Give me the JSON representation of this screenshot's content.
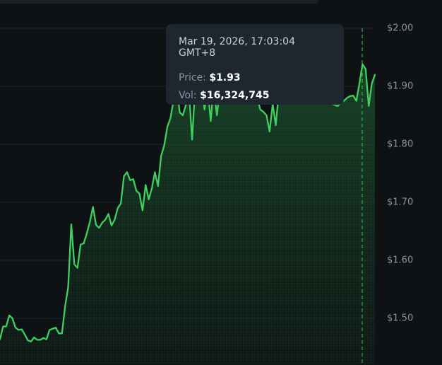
{
  "tooltip": {
    "date": "Mar 19, 2026, 17:03:04 GMT+8",
    "price_label": "Price:",
    "price_value": "$1.93",
    "vol_label": "Vol:",
    "vol_value": "$16,324,745"
  },
  "colors": {
    "line": "#3ecf5e",
    "background": "#0f1215",
    "tooltip_bg": "#1e2630",
    "axis_text": "#8a94a3"
  },
  "chart_data": {
    "type": "area",
    "y_ticks": [
      "$2.00",
      "$1.90",
      "$1.80",
      "$1.70",
      "$1.60",
      "$1.50"
    ],
    "y_tick_values": [
      2.0,
      1.9,
      1.8,
      1.7,
      1.6,
      1.5
    ],
    "ylim": [
      1.43,
      2.03
    ],
    "grid": true,
    "crosshair_index": 117,
    "values": [
      1.464,
      1.486,
      1.486,
      1.505,
      1.5,
      1.484,
      1.48,
      1.481,
      1.472,
      1.462,
      1.46,
      1.467,
      1.463,
      1.463,
      1.466,
      1.464,
      1.48,
      1.482,
      1.484,
      1.474,
      1.474,
      1.52,
      1.554,
      1.662,
      1.593,
      1.587,
      1.627,
      1.629,
      1.646,
      1.666,
      1.692,
      1.661,
      1.656,
      1.665,
      1.67,
      1.68,
      1.66,
      1.67,
      1.69,
      1.698,
      1.745,
      1.752,
      1.738,
      1.74,
      1.72,
      1.715,
      1.686,
      1.73,
      1.705,
      1.724,
      1.752,
      1.728,
      1.78,
      1.798,
      1.83,
      1.845,
      1.875,
      1.9,
      1.855,
      1.85,
      1.868,
      1.89,
      1.808,
      1.9,
      1.88,
      1.915,
      1.86,
      1.9,
      1.84,
      1.9,
      1.85,
      1.895,
      1.905,
      1.88,
      1.9,
      1.91,
      1.92,
      1.89,
      1.9,
      1.915,
      1.9,
      1.88,
      1.9,
      1.88,
      1.86,
      1.856,
      1.85,
      1.822,
      1.87,
      1.833,
      1.89,
      1.9,
      1.88,
      1.895,
      1.9,
      1.9,
      1.88,
      1.89,
      1.885,
      1.87,
      1.875,
      1.88,
      1.895,
      1.88,
      1.87,
      1.88,
      1.872,
      1.87,
      1.868,
      1.866,
      1.872,
      1.875,
      1.88,
      1.883,
      1.884,
      1.875,
      1.905,
      1.938,
      1.93,
      1.866,
      1.905,
      1.92
    ]
  }
}
